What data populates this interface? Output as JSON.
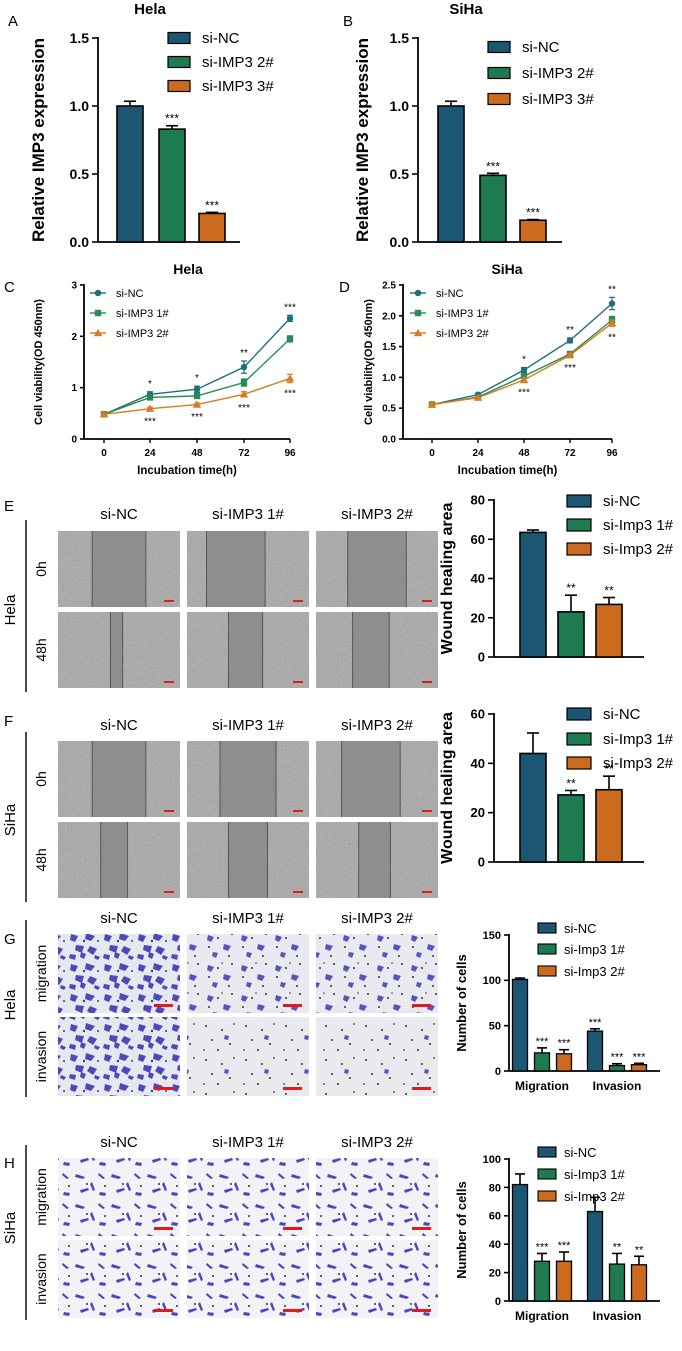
{
  "figure": {
    "rows": {
      "hela": "Hela",
      "siha": "SiHa",
      "t0": "0h",
      "t48": "48h",
      "migration": "migration",
      "invasion": "invasion"
    }
  },
  "colors": {
    "navy": "#1B5673",
    "green": "#1E7A50",
    "orange": "#CC6A1E",
    "teal": "#1F6E7C",
    "green2": "#2A8A56",
    "orange2": "#D97B22"
  },
  "chart_data": [
    {
      "id": "A",
      "type": "bar",
      "panel_label": "A",
      "title": "Hela",
      "ylabel": "Relative IMP3 expression",
      "xlabel": "",
      "ylim": [
        0,
        1.5
      ],
      "ticks": [
        "0.0",
        "0.5",
        "1.0",
        "1.5"
      ],
      "tick_values": [
        0,
        0.5,
        1.0,
        1.5
      ],
      "categories": [
        "si-NC",
        "si-IMP3 2#",
        "si-IMP3 3#"
      ],
      "values": [
        1.0,
        0.83,
        0.21
      ],
      "errors": [
        0.035,
        0.025,
        0.008
      ],
      "annotations": [
        "",
        "***",
        "***"
      ],
      "legend": [
        "si-NC",
        "si-IMP3 2#",
        "si-IMP3 3#"
      ]
    },
    {
      "id": "B",
      "type": "bar",
      "panel_label": "B",
      "title": "SiHa",
      "ylabel": "Relative IMP3 expression",
      "xlabel": "",
      "ylim": [
        0,
        1.5
      ],
      "ticks": [
        "0.0",
        "0.5",
        "1.0",
        "1.5"
      ],
      "tick_values": [
        0,
        0.5,
        1.0,
        1.5
      ],
      "categories": [
        "si-NC",
        "si-IMP3 2#",
        "si-IMP3 3#"
      ],
      "values": [
        1.0,
        0.49,
        0.16
      ],
      "errors": [
        0.035,
        0.015,
        0.005
      ],
      "annotations": [
        "",
        "***",
        "***"
      ],
      "legend": [
        "si-NC",
        "si-IMP3 2#",
        "si-IMP3 3#"
      ]
    },
    {
      "id": "C",
      "type": "line",
      "panel_label": "C",
      "title": "Hela",
      "ylabel": "Cell viability(OD 450nm)",
      "xlabel": "Incubation time(h)",
      "x": [
        0,
        24,
        48,
        72,
        96
      ],
      "x_ticks": [
        "0",
        "24",
        "48",
        "72",
        "96"
      ],
      "ylim": [
        0,
        3
      ],
      "ticks": [
        "0",
        "1",
        "2",
        "3"
      ],
      "tick_values": [
        0,
        1,
        2,
        3
      ],
      "series": [
        {
          "name": "si-NC",
          "values": [
            0.48,
            0.87,
            0.97,
            1.4,
            2.35
          ],
          "errors": [
            0.03,
            0.05,
            0.06,
            0.12,
            0.06
          ],
          "marker": "circle"
        },
        {
          "name": "si-IMP3 1#",
          "values": [
            0.48,
            0.81,
            0.84,
            1.1,
            1.95
          ],
          "errors": [
            0.03,
            0.04,
            0.05,
            0.07,
            0.06
          ],
          "marker": "square"
        },
        {
          "name": "si-IMP3 2#",
          "values": [
            0.48,
            0.59,
            0.67,
            0.87,
            1.18
          ],
          "errors": [
            0.02,
            0.03,
            0.03,
            0.05,
            0.08
          ],
          "marker": "triangle"
        }
      ],
      "annotations_above": [
        "",
        "*",
        "*",
        "**",
        "***"
      ],
      "annotations_below": [
        "",
        "***",
        "***",
        "***",
        "***"
      ]
    },
    {
      "id": "D",
      "type": "line",
      "panel_label": "D",
      "title": "SiHa",
      "ylabel": "Cell viability(OD 450nm)",
      "xlabel": "Incubation time(h)",
      "x": [
        0,
        24,
        48,
        72,
        96
      ],
      "x_ticks": [
        "0",
        "24",
        "48",
        "72",
        "96"
      ],
      "ylim": [
        0,
        2.5
      ],
      "ticks": [
        "0.0",
        "0.5",
        "1.0",
        "1.5",
        "2.0",
        "2.5"
      ],
      "tick_values": [
        0,
        0.5,
        1.0,
        1.5,
        2.0,
        2.5
      ],
      "series": [
        {
          "name": "si-NC",
          "values": [
            0.56,
            0.72,
            1.12,
            1.6,
            2.2
          ],
          "errors": [
            0.02,
            0.02,
            0.04,
            0.04,
            0.1
          ],
          "marker": "circle"
        },
        {
          "name": "si-IMP3 1#",
          "values": [
            0.56,
            0.68,
            1.02,
            1.38,
            1.93
          ],
          "errors": [
            0.02,
            0.02,
            0.03,
            0.03,
            0.06
          ],
          "marker": "square"
        },
        {
          "name": "si-IMP3 2#",
          "values": [
            0.56,
            0.67,
            0.96,
            1.36,
            1.88
          ],
          "errors": [
            0.02,
            0.02,
            0.03,
            0.03,
            0.05
          ],
          "marker": "triangle"
        }
      ],
      "annotations_above": [
        "",
        "",
        "*",
        "**",
        "**"
      ],
      "annotations_below": [
        "",
        "",
        "***",
        "***",
        "**"
      ]
    },
    {
      "id": "E",
      "type": "bar",
      "panel_label": "E",
      "title": "",
      "ylabel": "Wound healing area",
      "xlabel": "",
      "ylim": [
        0,
        80
      ],
      "ticks": [
        "0",
        "20",
        "40",
        "60",
        "80"
      ],
      "tick_values": [
        0,
        20,
        40,
        60,
        80
      ],
      "categories": [
        "si-NC",
        "si-Imp3 1#",
        "si-Imp3 2#"
      ],
      "values": [
        63.5,
        23.0,
        26.8
      ],
      "errors": [
        1.2,
        8.5,
        3.5
      ],
      "annotations": [
        "",
        "**",
        "**"
      ],
      "legend": [
        "si-NC",
        "si-Imp3 1#",
        "si-Imp3 2#"
      ],
      "image_grid": {
        "columns": [
          "si-NC",
          "si-IMP3 1#",
          "si-IMP3 2#"
        ],
        "rows": [
          "0h",
          "48h"
        ],
        "side": "Hela"
      }
    },
    {
      "id": "F",
      "type": "bar",
      "panel_label": "F",
      "title": "",
      "ylabel": "Wound healing area",
      "xlabel": "",
      "ylim": [
        0,
        60
      ],
      "ticks": [
        "0",
        "20",
        "40",
        "60"
      ],
      "tick_values": [
        0,
        20,
        40,
        60
      ],
      "categories": [
        "si-NC",
        "si-Imp3 1#",
        "si-Imp3 2#"
      ],
      "values": [
        44.0,
        27.2,
        29.3
      ],
      "errors": [
        8.3,
        1.8,
        5.5
      ],
      "annotations": [
        "",
        "**",
        "**"
      ],
      "legend": [
        "si-NC",
        "si-Imp3 1#",
        "si-Imp3 2#"
      ],
      "image_grid": {
        "columns": [
          "si-NC",
          "si-IMP3 1#",
          "si-IMP3 2#"
        ],
        "rows": [
          "0h",
          "48h"
        ],
        "side": "SiHa"
      }
    },
    {
      "id": "G",
      "type": "bar",
      "panel_label": "G",
      "title": "",
      "ylabel": "Number of cells",
      "xlabel": "",
      "ylim": [
        0,
        150
      ],
      "ticks": [
        "0",
        "50",
        "100",
        "150"
      ],
      "tick_values": [
        0,
        50,
        100,
        150
      ],
      "categories": [
        "Migration",
        "Invasion"
      ],
      "series": [
        {
          "name": "si-NC",
          "values": [
            101,
            44
          ],
          "errors": [
            1.5,
            2.5
          ]
        },
        {
          "name": "si-Imp3 1#",
          "values": [
            20,
            6
          ],
          "errors": [
            5.5,
            2.0
          ]
        },
        {
          "name": "si-Imp3 2#",
          "values": [
            19,
            7
          ],
          "errors": [
            4.5,
            1.5
          ]
        }
      ],
      "annotations": [
        [
          "",
          "***",
          "***"
        ],
        [
          "***",
          "***",
          "***"
        ]
      ],
      "legend": [
        "si-NC",
        "si-Imp3 1#",
        "si-Imp3 2#"
      ],
      "image_grid": {
        "columns": [
          "si-NC",
          "si-IMP3 1#",
          "si-IMP3 2#"
        ],
        "rows": [
          "migration",
          "invasion"
        ],
        "side": "Hela"
      }
    },
    {
      "id": "H",
      "type": "bar",
      "panel_label": "H",
      "title": "",
      "ylabel": "Number of cells",
      "xlabel": "",
      "ylim": [
        0,
        100
      ],
      "ticks": [
        "0",
        "20",
        "40",
        "60",
        "80",
        "100"
      ],
      "tick_values": [
        0,
        20,
        40,
        60,
        80,
        100
      ],
      "categories": [
        "Migration",
        "Invasion"
      ],
      "series": [
        {
          "name": "si-NC",
          "values": [
            82,
            63
          ],
          "errors": [
            7.5,
            10
          ]
        },
        {
          "name": "si-Imp3 1#",
          "values": [
            28,
            26
          ],
          "errors": [
            5.5,
            7.5
          ]
        },
        {
          "name": "si-Imp3 2#",
          "values": [
            28,
            25.5
          ],
          "errors": [
            6.5,
            6
          ]
        }
      ],
      "annotations": [
        [
          "",
          "***",
          "***"
        ],
        [
          "",
          "**",
          "**"
        ]
      ],
      "legend": [
        "si-NC",
        "si-Imp3 1#",
        "si-Imp3 2#"
      ],
      "image_grid": {
        "columns": [
          "si-NC",
          "si-IMP3 1#",
          "si-IMP3 2#"
        ],
        "rows": [
          "migration",
          "invasion"
        ],
        "side": "SiHa"
      }
    }
  ]
}
